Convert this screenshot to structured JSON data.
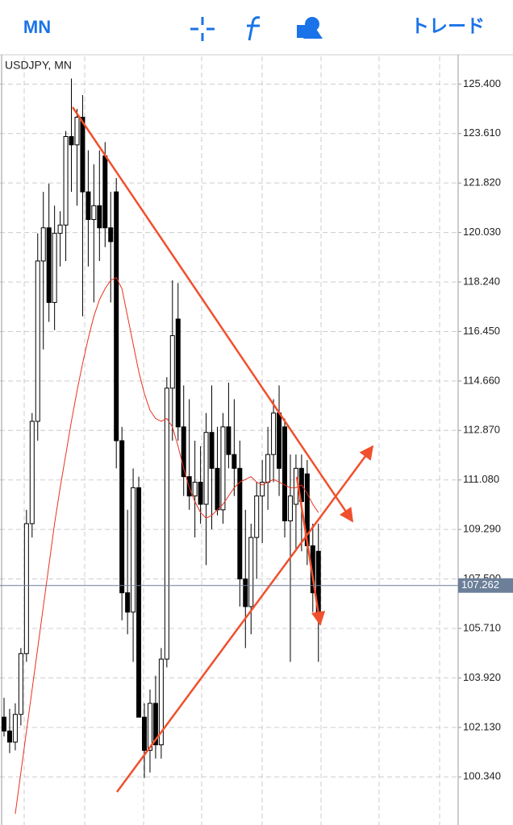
{
  "toolbar": {
    "timeframe": "MN",
    "trade": "トレード"
  },
  "chart_data": {
    "type": "candlestick",
    "title": "USDJPY, MN",
    "open": [
      102.5,
      102.0,
      101.6,
      102.6,
      104.8,
      109.5,
      113.2,
      119.0,
      120.2,
      117.5,
      120.0,
      120.3,
      123.5,
      123.2,
      124.2,
      121.5,
      120.5,
      121.0,
      122.8,
      120.2,
      121.5,
      112.5,
      107.0,
      106.3,
      110.8,
      102.5,
      101.3,
      103.0,
      101.5,
      104.6,
      114.4,
      116.9,
      113.0,
      111.2,
      110.5,
      111.0,
      110.2,
      112.8,
      111.5,
      110.0,
      113.0,
      112.0,
      111.5,
      107.5,
      106.5,
      109.0,
      110.5,
      111.0,
      112.0,
      113.5,
      113.0,
      109.6,
      110.2,
      111.5,
      111.3,
      108.7,
      108.5
    ],
    "high": [
      103.2,
      102.8,
      103.0,
      105.0,
      110.0,
      113.5,
      120.0,
      121.5,
      121.8,
      121.0,
      120.8,
      123.7,
      125.6,
      124.5,
      125.0,
      123.0,
      122.5,
      123.0,
      123.3,
      121.5,
      122.0,
      113.0,
      110.0,
      111.5,
      111.2,
      103.0,
      103.5,
      104.0,
      105.0,
      114.8,
      118.3,
      118.2,
      114.5,
      114.0,
      112.5,
      112.3,
      113.5,
      114.5,
      113.0,
      113.5,
      114.6,
      114.0,
      112.5,
      110.0,
      109.5,
      111.0,
      111.8,
      113.0,
      114.0,
      114.5,
      113.3,
      112.0,
      112.0,
      112.0,
      111.8,
      109.5,
      109.5
    ],
    "low": [
      101.8,
      101.2,
      101.3,
      102.2,
      104.5,
      109.0,
      112.5,
      115.8,
      116.8,
      116.5,
      118.8,
      119.0,
      121.5,
      121.0,
      117.0,
      118.8,
      117.5,
      119.0,
      119.5,
      117.5,
      111.5,
      106.0,
      105.5,
      104.5,
      102.5,
      100.3,
      100.5,
      101.0,
      101.0,
      104.3,
      112.5,
      112.5,
      110.5,
      110.0,
      109.0,
      109.5,
      108.0,
      109.3,
      109.8,
      109.5,
      111.5,
      110.5,
      106.5,
      105.0,
      105.5,
      107.5,
      108.8,
      110.0,
      111.0,
      110.5,
      109.0,
      104.5,
      108.5,
      108.5,
      108.0,
      106.3,
      104.5
    ],
    "close": [
      102.0,
      101.6,
      102.6,
      104.8,
      109.5,
      113.2,
      119.0,
      120.2,
      117.5,
      120.0,
      120.3,
      123.5,
      123.2,
      124.2,
      121.5,
      120.5,
      121.0,
      120.2,
      120.2,
      119.7,
      112.5,
      107.0,
      106.3,
      110.8,
      102.5,
      101.3,
      103.0,
      101.5,
      104.6,
      114.4,
      116.3,
      113.0,
      111.2,
      110.5,
      111.0,
      110.2,
      112.8,
      111.5,
      110.0,
      113.0,
      112.0,
      111.5,
      107.5,
      106.5,
      109.0,
      110.5,
      111.0,
      112.0,
      113.5,
      111.5,
      109.6,
      110.5,
      111.5,
      110.3,
      108.7,
      107.0,
      106.3
    ],
    "moving_average": {
      "color": "#e8321e",
      "values": [
        null,
        null,
        99.0,
        100.5,
        102.0,
        103.5,
        105.0,
        106.5,
        108.0,
        109.5,
        110.8,
        112.0,
        113.2,
        114.3,
        115.3,
        116.2,
        117.0,
        117.6,
        118.0,
        118.3,
        118.4,
        118.0,
        117.0,
        116.0,
        115.0,
        114.2,
        113.6,
        113.3,
        113.2,
        113.3,
        113.0,
        112.3,
        111.5,
        110.8,
        110.3,
        109.9,
        109.7,
        109.8,
        110.0,
        110.2,
        110.5,
        110.8,
        111.0,
        111.1,
        111.2,
        111.0,
        110.9,
        111.0,
        111.1,
        111.0,
        110.9,
        110.8,
        110.8,
        110.9,
        110.6,
        110.2,
        109.9
      ]
    },
    "last_price": 107.262,
    "ylim": [
      98.6,
      126.4
    ],
    "yticks": [
      {
        "value": 125.4,
        "label": "125.400"
      },
      {
        "value": 123.61,
        "label": "123.610"
      },
      {
        "value": 121.82,
        "label": "121.820"
      },
      {
        "value": 120.03,
        "label": "120.030"
      },
      {
        "value": 118.24,
        "label": "118.240"
      },
      {
        "value": 116.45,
        "label": "116.450"
      },
      {
        "value": 114.66,
        "label": "114.660"
      },
      {
        "value": 112.87,
        "label": "112.870"
      },
      {
        "value": 111.08,
        "label": "111.080"
      },
      {
        "value": 109.29,
        "label": "109.290"
      },
      {
        "value": 107.5,
        "label": "107.500"
      },
      {
        "value": 105.71,
        "label": "105.710"
      },
      {
        "value": 103.92,
        "label": "103.920"
      },
      {
        "value": 102.13,
        "label": "102.130"
      },
      {
        "value": 100.34,
        "label": "100.340"
      }
    ],
    "grid": true
  }
}
